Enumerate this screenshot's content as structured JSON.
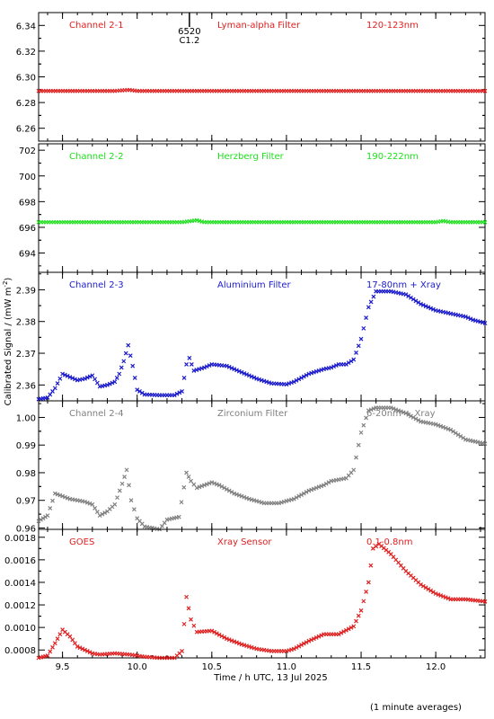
{
  "chart_data": {
    "type": "scatter",
    "xlabel": "Time / h UTC, 13 Jul 2025",
    "ylabel": "Calibrated Signal / (mW m",
    "ylabel_sup": "-2",
    "ylabel_end": ")",
    "xlim": [
      9.34,
      12.33
    ],
    "xticks": [
      9.5,
      10.0,
      10.5,
      11.0,
      11.5,
      12.0
    ],
    "xtick_labels": [
      "9.5",
      "10.0",
      "10.5",
      "11.0",
      "11.5",
      "12.0"
    ],
    "footnote": "(1 minute averages)",
    "event_marker": {
      "x": 10.35,
      "label_top": "6520",
      "label_bottom": "C1.2"
    },
    "panels": [
      {
        "name": "Channel 2-1",
        "filter": "Lyman-alpha Filter",
        "band": "120-123nm",
        "color": "#e02020",
        "ylim": [
          6.25,
          6.35
        ],
        "yticks": [
          6.26,
          6.28,
          6.3,
          6.32,
          6.34
        ],
        "ytick_labels": [
          "6.26",
          "6.28",
          "6.30",
          "6.32",
          "6.34"
        ],
        "points": [
          [
            9.34,
            6.289
          ],
          [
            9.6,
            6.289
          ],
          [
            9.85,
            6.289
          ],
          [
            9.9,
            6.2895
          ],
          [
            9.95,
            6.2898
          ],
          [
            10.0,
            6.289
          ],
          [
            10.3,
            6.289
          ],
          [
            10.6,
            6.289
          ],
          [
            10.9,
            6.289
          ],
          [
            11.2,
            6.289
          ],
          [
            11.5,
            6.289
          ],
          [
            11.8,
            6.289
          ],
          [
            12.1,
            6.289
          ],
          [
            12.33,
            6.289
          ]
        ]
      },
      {
        "name": "Channel 2-2",
        "filter": "Herzberg Filter",
        "band": "190-222nm",
        "color": "#20e020",
        "ylim": [
          692.5,
          702.5
        ],
        "yticks": [
          694,
          696,
          698,
          700,
          702
        ],
        "ytick_labels": [
          "694",
          "696",
          "698",
          "700",
          "702"
        ],
        "points": [
          [
            9.34,
            696.4
          ],
          [
            10.3,
            696.4
          ],
          [
            10.4,
            696.55
          ],
          [
            10.45,
            696.4
          ],
          [
            11.5,
            696.4
          ],
          [
            12.0,
            696.4
          ],
          [
            12.05,
            696.5
          ],
          [
            12.1,
            696.4
          ],
          [
            12.33,
            696.4
          ]
        ]
      },
      {
        "name": "Channel 2-3",
        "filter": "Aluminium Filter",
        "band": "17-80nm + Xray",
        "color": "#1a1acc",
        "ylim": [
          2.355,
          2.3955
        ],
        "yticks": [
          2.36,
          2.37,
          2.38,
          2.39
        ],
        "ytick_labels": [
          "2.36",
          "2.37",
          "2.38",
          "2.39"
        ],
        "points": [
          [
            9.34,
            2.3555
          ],
          [
            9.4,
            2.356
          ],
          [
            9.45,
            2.359
          ],
          [
            9.5,
            2.3635
          ],
          [
            9.55,
            2.3625
          ],
          [
            9.6,
            2.3615
          ],
          [
            9.65,
            2.362
          ],
          [
            9.7,
            2.363
          ],
          [
            9.75,
            2.3595
          ],
          [
            9.8,
            2.36
          ],
          [
            9.85,
            2.361
          ],
          [
            9.88,
            2.3635
          ],
          [
            9.91,
            2.3675
          ],
          [
            9.94,
            2.3725
          ],
          [
            9.97,
            2.366
          ],
          [
            10.0,
            2.3585
          ],
          [
            10.05,
            2.357
          ],
          [
            10.15,
            2.3568
          ],
          [
            10.25,
            2.3568
          ],
          [
            10.3,
            2.358
          ],
          [
            10.33,
            2.3665
          ],
          [
            10.35,
            2.3685
          ],
          [
            10.38,
            2.3645
          ],
          [
            10.45,
            2.3655
          ],
          [
            10.5,
            2.3665
          ],
          [
            10.6,
            2.366
          ],
          [
            10.7,
            2.364
          ],
          [
            10.8,
            2.362
          ],
          [
            10.9,
            2.3605
          ],
          [
            11.0,
            2.3602
          ],
          [
            11.05,
            2.361
          ],
          [
            11.15,
            2.3635
          ],
          [
            11.25,
            2.365
          ],
          [
            11.3,
            2.3655
          ],
          [
            11.35,
            2.3665
          ],
          [
            11.4,
            2.3665
          ],
          [
            11.45,
            2.368
          ],
          [
            11.5,
            2.3745
          ],
          [
            11.55,
            2.3845
          ],
          [
            11.6,
            2.3895
          ],
          [
            11.7,
            2.3895
          ],
          [
            11.8,
            2.3885
          ],
          [
            11.9,
            2.3855
          ],
          [
            12.0,
            2.3835
          ],
          [
            12.1,
            2.3825
          ],
          [
            12.2,
            2.3815
          ],
          [
            12.25,
            2.3805
          ],
          [
            12.33,
            2.3795
          ]
        ]
      },
      {
        "name": "Channel 2-4",
        "filter": "Zirconium Filter",
        "band": "6-20nm + Xray",
        "color": "#808080",
        "ylim": [
          0.9595,
          1.006
        ],
        "yticks": [
          0.96,
          0.97,
          0.98,
          0.99,
          1.0
        ],
        "ytick_labels": [
          "0.96",
          "0.97",
          "0.98",
          "0.99",
          "1.00"
        ],
        "points": [
          [
            9.34,
            0.9625
          ],
          [
            9.4,
            0.9645
          ],
          [
            9.45,
            0.9725
          ],
          [
            9.5,
            0.9715
          ],
          [
            9.55,
            0.9705
          ],
          [
            9.65,
            0.9695
          ],
          [
            9.7,
            0.9685
          ],
          [
            9.75,
            0.9645
          ],
          [
            9.8,
            0.966
          ],
          [
            9.85,
            0.9685
          ],
          [
            9.9,
            0.976
          ],
          [
            9.93,
            0.981
          ],
          [
            9.96,
            0.97
          ],
          [
            10.0,
            0.9635
          ],
          [
            10.05,
            0.9605
          ],
          [
            10.15,
            0.9595
          ],
          [
            10.2,
            0.963
          ],
          [
            10.28,
            0.964
          ],
          [
            10.33,
            0.98
          ],
          [
            10.36,
            0.977
          ],
          [
            10.4,
            0.9745
          ],
          [
            10.5,
            0.9765
          ],
          [
            10.55,
            0.9755
          ],
          [
            10.65,
            0.9725
          ],
          [
            10.75,
            0.9705
          ],
          [
            10.85,
            0.969
          ],
          [
            10.95,
            0.969
          ],
          [
            11.05,
            0.9705
          ],
          [
            11.15,
            0.9735
          ],
          [
            11.25,
            0.9755
          ],
          [
            11.3,
            0.977
          ],
          [
            11.4,
            0.978
          ],
          [
            11.45,
            0.981
          ],
          [
            11.5,
            0.9945
          ],
          [
            11.55,
            1.0025
          ],
          [
            11.6,
            1.0035
          ],
          [
            11.7,
            1.0035
          ],
          [
            11.8,
            1.0015
          ],
          [
            11.9,
            0.9985
          ],
          [
            12.0,
            0.9975
          ],
          [
            12.1,
            0.9955
          ],
          [
            12.2,
            0.992
          ],
          [
            12.33,
            0.9905
          ]
        ]
      },
      {
        "name": "GOES",
        "filter": "Xray Sensor",
        "band": "0.1-0.8nm",
        "color": "#e02020",
        "ylim": [
          0.00073,
          0.00187
        ],
        "yticks": [
          0.0008,
          0.001,
          0.0012,
          0.0014,
          0.0016,
          0.0018
        ],
        "ytick_labels": [
          "0.0008",
          "0.0010",
          "0.0012",
          "0.0014",
          "0.0016",
          "0.0018"
        ],
        "points": [
          [
            9.34,
            0.00073
          ],
          [
            9.4,
            0.00075
          ],
          [
            9.45,
            0.00086
          ],
          [
            9.5,
            0.00098
          ],
          [
            9.55,
            0.00092
          ],
          [
            9.6,
            0.00083
          ],
          [
            9.7,
            0.00077
          ],
          [
            9.75,
            0.00076
          ],
          [
            9.85,
            0.00077
          ],
          [
            9.95,
            0.00076
          ],
          [
            10.05,
            0.00074
          ],
          [
            10.15,
            0.00073
          ],
          [
            10.25,
            0.00073
          ],
          [
            10.3,
            0.00079
          ],
          [
            10.33,
            0.00127
          ],
          [
            10.36,
            0.00107
          ],
          [
            10.4,
            0.00096
          ],
          [
            10.5,
            0.00097
          ],
          [
            10.6,
            0.0009
          ],
          [
            10.7,
            0.00085
          ],
          [
            10.8,
            0.00081
          ],
          [
            10.9,
            0.00079
          ],
          [
            11.0,
            0.00079
          ],
          [
            11.05,
            0.00081
          ],
          [
            11.15,
            0.00088
          ],
          [
            11.25,
            0.00094
          ],
          [
            11.35,
            0.00094
          ],
          [
            11.45,
            0.00101
          ],
          [
            11.5,
            0.00115
          ],
          [
            11.55,
            0.0014
          ],
          [
            11.58,
            0.0017
          ],
          [
            11.62,
            0.00174
          ],
          [
            11.7,
            0.00165
          ],
          [
            11.8,
            0.0015
          ],
          [
            11.9,
            0.00138
          ],
          [
            12.0,
            0.0013
          ],
          [
            12.1,
            0.00125
          ],
          [
            12.2,
            0.00125
          ],
          [
            12.33,
            0.00123
          ]
        ]
      }
    ]
  }
}
